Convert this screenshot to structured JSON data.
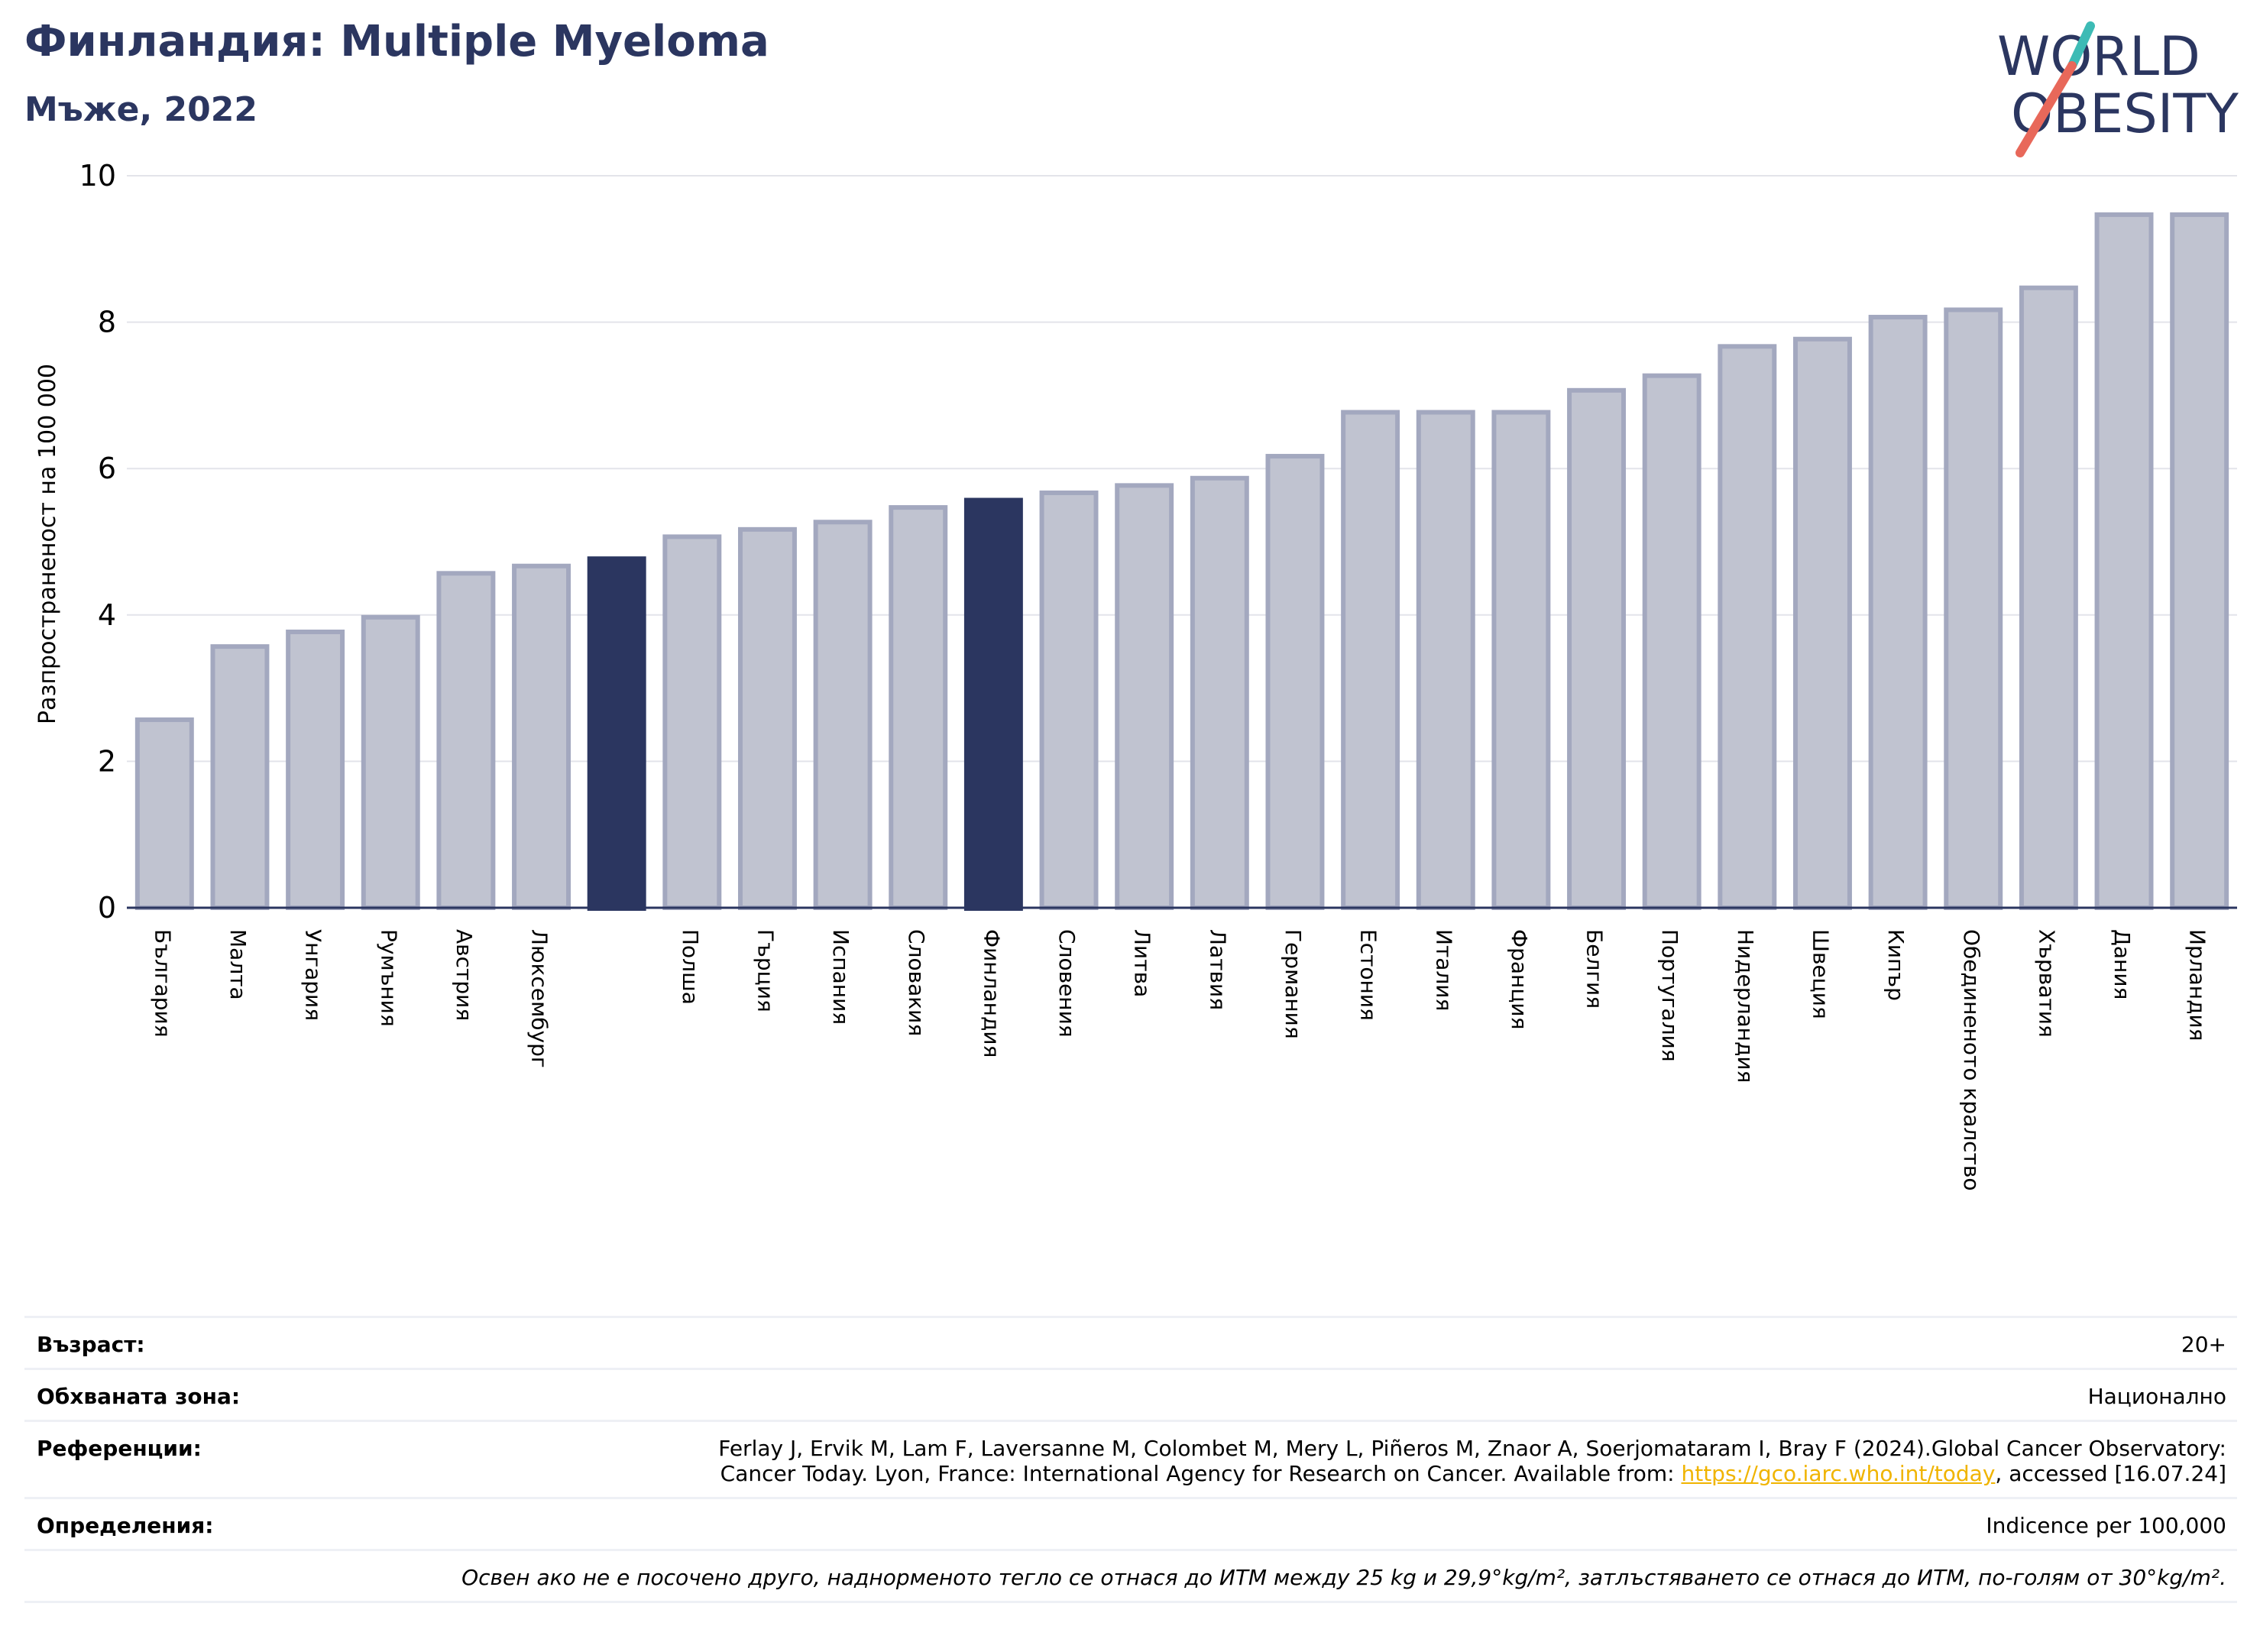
{
  "header": {
    "title": "Финландия: Multiple Myeloma",
    "subtitle": "Мъже, 2022"
  },
  "logo": {
    "line1": "WORLD",
    "line2": "OBESITY",
    "accent_teal": "#3dbbb5",
    "accent_coral": "#e8685a",
    "text_color": "#2b3660"
  },
  "chart_data": {
    "type": "bar",
    "title": "",
    "xlabel": "",
    "ylabel": "Разпространеност  на 100 000",
    "ylim": [
      0,
      10
    ],
    "yticks": [
      0,
      2,
      4,
      6,
      8,
      10
    ],
    "grid": true,
    "categories": [
      "България",
      "Малта",
      "Унгария",
      "Румъния",
      "Австрия",
      "Люксембург",
      "",
      "Полша",
      "Гърция",
      "Испания",
      "Словакия",
      "Финландия",
      "Словения",
      "Литва",
      "Латвия",
      "Германия",
      "Естония",
      "Италия",
      "Франция",
      "Белгия",
      "Португалия",
      "Нидерландия",
      "Швеция",
      "Кипър",
      "Обединеното кралство",
      "Хърватия",
      "Дания",
      "Ирландия"
    ],
    "values": [
      2.6,
      3.6,
      3.8,
      4.0,
      4.6,
      4.7,
      4.8,
      5.1,
      5.2,
      5.3,
      5.5,
      5.6,
      5.7,
      5.8,
      5.9,
      6.2,
      6.8,
      6.8,
      6.8,
      7.1,
      7.3,
      7.7,
      7.8,
      8.1,
      8.2,
      8.5,
      9.5,
      9.5
    ],
    "highlighted": [
      6,
      11
    ],
    "colors": {
      "bar_fill": "#c0c3d0",
      "bar_edge": "#a3a8bf",
      "highlight": "#2b3660",
      "grid": "#e3e4ea",
      "axis": "#2b3660"
    }
  },
  "info": {
    "age_label": "Възраст:",
    "age_value": "20+",
    "area_label": "Обхваната зона:",
    "area_value": "Национално",
    "refs_label": "Референции:",
    "refs_line1": "Ferlay J, Ervik M, Lam F, Laversanne M, Colombet M, Mery L, Piñeros M, Znaor A, Soerjomataram I, Bray F (2024).Global Cancer Observatory:",
    "refs_line2_prefix": "Cancer Today. Lyon, France: International Agency for Research on Cancer. Available from: ",
    "refs_link": "https://gco.iarc.who.int/today",
    "refs_line2_suffix": ", accessed [16.07.24]",
    "defs_label": "Определения:",
    "defs_value": "Indicence per 100,000",
    "note": "Освен ако не е посочено друго, наднорменото тегло се отнася до ИТМ между 25 kg и 29,9°kg/m², затлъстяването се отнася до ИТМ, по-голям от 30°kg/m²."
  }
}
